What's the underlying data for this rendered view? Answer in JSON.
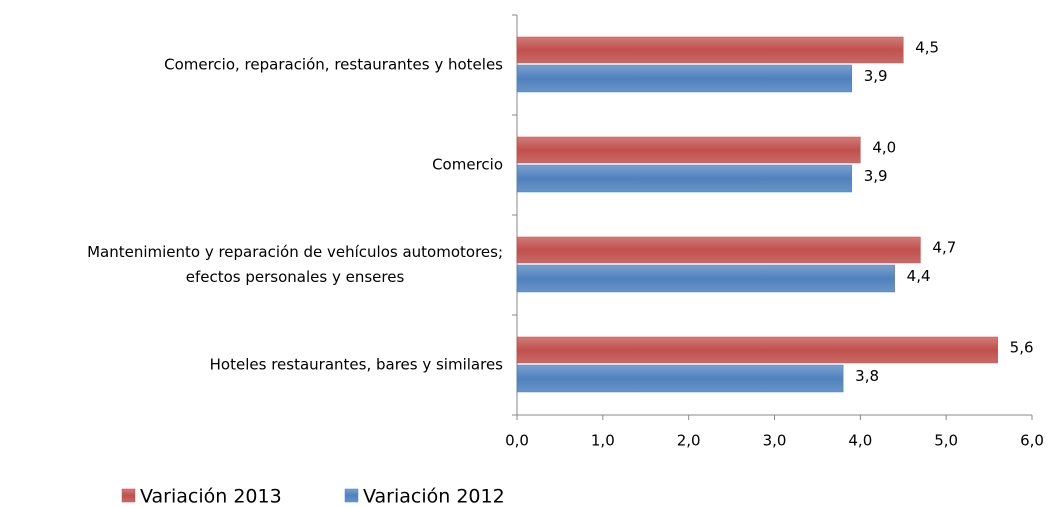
{
  "chart_data": {
    "type": "hbar",
    "categories": [
      "Comercio, reparación, restaurantes y hoteles",
      "Comercio",
      "Mantenimiento y reparación de vehículos automotores;\nefectos personales y enseres",
      "Hoteles restaurantes, bares y similares"
    ],
    "series": [
      {
        "name": "Variación 2013",
        "color": "#c0504d",
        "values": [
          4.5,
          4.0,
          4.7,
          5.6
        ],
        "value_labels": [
          "4,5",
          "4,0",
          "4,7",
          "5,6"
        ]
      },
      {
        "name": "Variación 2012",
        "color": "#4f81bd",
        "values": [
          3.9,
          3.9,
          4.4,
          3.8
        ],
        "value_labels": [
          "3,9",
          "3,9",
          "4,4",
          "3,8"
        ]
      }
    ],
    "xlim": [
      0,
      6
    ],
    "xticks": [
      {
        "value": 0,
        "label": "0,0"
      },
      {
        "value": 1,
        "label": "1,0"
      },
      {
        "value": 2,
        "label": "2,0"
      },
      {
        "value": 3,
        "label": "3,0"
      },
      {
        "value": 4,
        "label": "4,0"
      },
      {
        "value": 5,
        "label": "5,0"
      },
      {
        "value": 6,
        "label": "6,0"
      }
    ],
    "legend": "bottom-left",
    "grid": false
  }
}
